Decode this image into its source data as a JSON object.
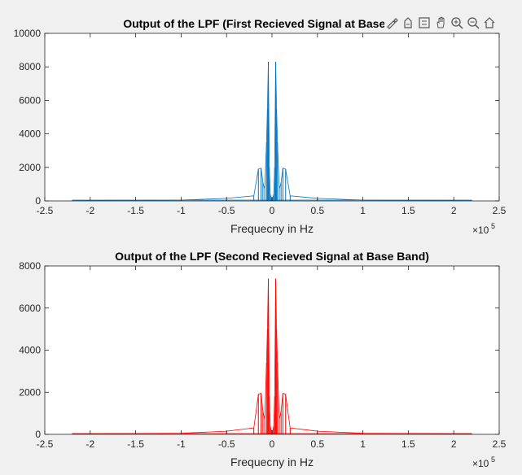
{
  "figure": {
    "background": "#f0f0f0"
  },
  "toolbar": {
    "icons": [
      "brush-icon",
      "data-cursor-icon",
      "legend-icon",
      "pan-hand-icon",
      "zoom-in-icon",
      "zoom-out-icon",
      "home-icon"
    ]
  },
  "chart_data": [
    {
      "type": "line",
      "title": "Output of the LPF (First Recieved Signal at Base Band)",
      "xlabel": "Frequecny in Hz",
      "ylabel": "",
      "xlim": [
        -250000,
        250000
      ],
      "ylim": [
        0,
        10000
      ],
      "x_ticks": [
        -250000,
        -200000,
        -150000,
        -100000,
        -50000,
        0,
        50000,
        100000,
        150000,
        200000,
        250000
      ],
      "x_tick_labels": [
        "-2.5",
        "-2",
        "-1.5",
        "-1",
        "-0.5",
        "0",
        "0.5",
        "1",
        "1.5",
        "2",
        "2.5"
      ],
      "x_exponent": "×10",
      "x_exponent_power": "5",
      "y_ticks": [
        0,
        2000,
        4000,
        6000,
        8000,
        10000
      ],
      "y_tick_labels": [
        "0",
        "2000",
        "4000",
        "6000",
        "8000",
        "10000"
      ],
      "grid": false,
      "color": "#0072bd",
      "series": [
        {
          "x": [
            -220000,
            -100000,
            -50000,
            -20000,
            -15000,
            -12000,
            -10000,
            -8000,
            -6000,
            -5000,
            -4000,
            -3000,
            -2000,
            -1000,
            0,
            1000,
            2000,
            3000,
            4000,
            5000,
            6000,
            8000,
            10000,
            12000,
            15000,
            20000,
            50000,
            100000,
            220000
          ],
          "y": [
            20,
            50,
            150,
            300,
            1900,
            1950,
            1100,
            700,
            3500,
            5500,
            8300,
            2000,
            400,
            200,
            150,
            200,
            400,
            2000,
            8300,
            5500,
            3500,
            700,
            1100,
            1950,
            1900,
            300,
            150,
            50,
            20
          ]
        }
      ]
    },
    {
      "type": "line",
      "title": "Output of the LPF (Second Recieved Signal at Base Band)",
      "xlabel": "Frequecny in Hz",
      "ylabel": "",
      "xlim": [
        -250000,
        250000
      ],
      "ylim": [
        0,
        8000
      ],
      "x_ticks": [
        -250000,
        -200000,
        -150000,
        -100000,
        -50000,
        0,
        50000,
        100000,
        150000,
        200000,
        250000
      ],
      "x_tick_labels": [
        "-2.5",
        "-2",
        "-1.5",
        "-1",
        "-0.5",
        "0",
        "0.5",
        "1",
        "1.5",
        "2",
        "2.5"
      ],
      "x_exponent": "×10",
      "x_exponent_power": "5",
      "y_ticks": [
        0,
        2000,
        4000,
        6000,
        8000
      ],
      "y_tick_labels": [
        "0",
        "2000",
        "4000",
        "6000",
        "8000"
      ],
      "grid": false,
      "color": "#ff0000",
      "series": [
        {
          "x": [
            -220000,
            -100000,
            -50000,
            -20000,
            -15000,
            -12000,
            -10000,
            -8000,
            -6000,
            -5000,
            -4000,
            -3000,
            -2000,
            -1000,
            0,
            1000,
            2000,
            3000,
            4000,
            5000,
            6000,
            8000,
            10000,
            12000,
            15000,
            20000,
            50000,
            100000,
            220000
          ],
          "y": [
            20,
            50,
            150,
            300,
            1900,
            1950,
            1100,
            700,
            3400,
            5000,
            7400,
            1800,
            400,
            200,
            150,
            200,
            400,
            1800,
            7400,
            5000,
            3400,
            700,
            1100,
            1950,
            1900,
            300,
            150,
            50,
            20
          ]
        }
      ]
    }
  ]
}
